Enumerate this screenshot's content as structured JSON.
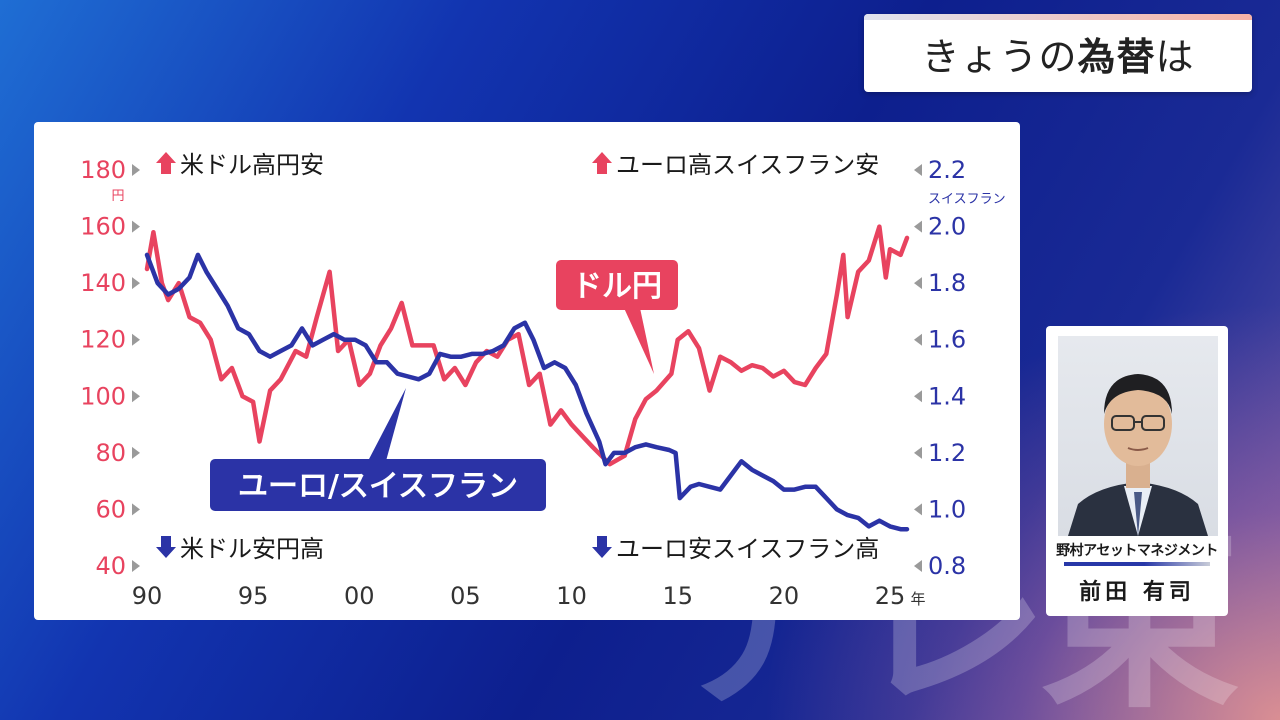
{
  "title": {
    "prefix": "きょうの",
    "emphasis": "為替",
    "suffix": "は"
  },
  "watermark": "テレ東",
  "guest": {
    "organization": "野村アセットマネジメント",
    "name": "前田 有司"
  },
  "colors": {
    "usd_jpy": "#e8435f",
    "eur_chf": "#2b33a6"
  },
  "chart_data": {
    "type": "line",
    "x_tick_labels": [
      "90",
      "95",
      "00",
      "05",
      "10",
      "15",
      "20",
      "25"
    ],
    "x_unit": "年",
    "xlim": [
      1990,
      2025.8
    ],
    "left_axis": {
      "unit": "円",
      "ticks": [
        "180",
        "160",
        "140",
        "120",
        "100",
        "80",
        "60",
        "40"
      ],
      "ylim": [
        40,
        180
      ],
      "top_note": "米ドル高円安",
      "bottom_note": "米ドル安円高"
    },
    "right_axis": {
      "unit": "スイスフラン",
      "ticks": [
        "2.2",
        "2.0",
        "1.8",
        "1.6",
        "1.4",
        "1.2",
        "1.0",
        "0.8"
      ],
      "ylim": [
        0.8,
        2.2
      ],
      "top_note": "ユーロ高スイスフラン安",
      "bottom_note": "ユーロ安スイスフラン高"
    },
    "series": [
      {
        "name": "ドル円",
        "axis": "left",
        "points": [
          [
            1990.0,
            145
          ],
          [
            1990.3,
            158
          ],
          [
            1990.7,
            140
          ],
          [
            1991.0,
            134
          ],
          [
            1991.5,
            140
          ],
          [
            1992.0,
            128
          ],
          [
            1992.5,
            126
          ],
          [
            1993.0,
            120
          ],
          [
            1993.5,
            106
          ],
          [
            1994.0,
            110
          ],
          [
            1994.5,
            100
          ],
          [
            1995.0,
            98
          ],
          [
            1995.3,
            84
          ],
          [
            1995.8,
            102
          ],
          [
            1996.3,
            106
          ],
          [
            1997.0,
            116
          ],
          [
            1997.5,
            114
          ],
          [
            1998.0,
            128
          ],
          [
            1998.6,
            144
          ],
          [
            1999.0,
            116
          ],
          [
            1999.5,
            120
          ],
          [
            2000.0,
            104
          ],
          [
            2000.5,
            108
          ],
          [
            2001.0,
            118
          ],
          [
            2001.5,
            124
          ],
          [
            2002.0,
            133
          ],
          [
            2002.5,
            118
          ],
          [
            2003.0,
            118
          ],
          [
            2003.5,
            118
          ],
          [
            2004.0,
            106
          ],
          [
            2004.5,
            110
          ],
          [
            2005.0,
            104
          ],
          [
            2005.5,
            112
          ],
          [
            2006.0,
            116
          ],
          [
            2006.5,
            114
          ],
          [
            2007.0,
            120
          ],
          [
            2007.5,
            122
          ],
          [
            2008.0,
            104
          ],
          [
            2008.5,
            108
          ],
          [
            2009.0,
            90
          ],
          [
            2009.5,
            95
          ],
          [
            2010.0,
            90
          ],
          [
            2010.5,
            86
          ],
          [
            2011.0,
            82
          ],
          [
            2011.8,
            76
          ],
          [
            2012.5,
            79
          ],
          [
            2013.0,
            92
          ],
          [
            2013.5,
            99
          ],
          [
            2014.0,
            102
          ],
          [
            2014.7,
            108
          ],
          [
            2015.0,
            120
          ],
          [
            2015.5,
            123
          ],
          [
            2016.0,
            117
          ],
          [
            2016.5,
            102
          ],
          [
            2017.0,
            114
          ],
          [
            2017.5,
            112
          ],
          [
            2018.0,
            109
          ],
          [
            2018.5,
            111
          ],
          [
            2019.0,
            110
          ],
          [
            2019.5,
            107
          ],
          [
            2020.0,
            109
          ],
          [
            2020.5,
            105
          ],
          [
            2021.0,
            104
          ],
          [
            2021.5,
            110
          ],
          [
            2022.0,
            115
          ],
          [
            2022.5,
            136
          ],
          [
            2022.8,
            150
          ],
          [
            2023.0,
            128
          ],
          [
            2023.5,
            144
          ],
          [
            2024.0,
            148
          ],
          [
            2024.5,
            160
          ],
          [
            2024.8,
            142
          ],
          [
            2025.0,
            152
          ],
          [
            2025.5,
            150
          ],
          [
            2025.8,
            156
          ]
        ]
      },
      {
        "name": "ユーロ/スイスフラン",
        "axis": "right",
        "points": [
          [
            1990.0,
            1.9
          ],
          [
            1990.5,
            1.8
          ],
          [
            1991.0,
            1.76
          ],
          [
            1991.5,
            1.78
          ],
          [
            1992.0,
            1.82
          ],
          [
            1992.4,
            1.9
          ],
          [
            1992.8,
            1.84
          ],
          [
            1993.3,
            1.78
          ],
          [
            1993.8,
            1.72
          ],
          [
            1994.3,
            1.64
          ],
          [
            1994.8,
            1.62
          ],
          [
            1995.3,
            1.56
          ],
          [
            1995.8,
            1.54
          ],
          [
            1996.3,
            1.56
          ],
          [
            1996.8,
            1.58
          ],
          [
            1997.3,
            1.64
          ],
          [
            1997.8,
            1.58
          ],
          [
            1998.3,
            1.6
          ],
          [
            1998.8,
            1.62
          ],
          [
            1999.3,
            1.6
          ],
          [
            1999.8,
            1.6
          ],
          [
            2000.3,
            1.58
          ],
          [
            2000.8,
            1.52
          ],
          [
            2001.3,
            1.52
          ],
          [
            2001.8,
            1.48
          ],
          [
            2002.3,
            1.47
          ],
          [
            2002.8,
            1.46
          ],
          [
            2003.3,
            1.48
          ],
          [
            2003.8,
            1.55
          ],
          [
            2004.3,
            1.54
          ],
          [
            2004.8,
            1.54
          ],
          [
            2005.3,
            1.55
          ],
          [
            2005.8,
            1.55
          ],
          [
            2006.3,
            1.56
          ],
          [
            2006.8,
            1.58
          ],
          [
            2007.3,
            1.64
          ],
          [
            2007.8,
            1.66
          ],
          [
            2008.2,
            1.6
          ],
          [
            2008.7,
            1.5
          ],
          [
            2009.2,
            1.52
          ],
          [
            2009.7,
            1.5
          ],
          [
            2010.2,
            1.44
          ],
          [
            2010.7,
            1.34
          ],
          [
            2011.3,
            1.24
          ],
          [
            2011.6,
            1.16
          ],
          [
            2012.0,
            1.2
          ],
          [
            2012.5,
            1.2
          ],
          [
            2013.0,
            1.22
          ],
          [
            2013.5,
            1.23
          ],
          [
            2014.0,
            1.22
          ],
          [
            2014.6,
            1.21
          ],
          [
            2014.9,
            1.2
          ],
          [
            2015.1,
            1.04
          ],
          [
            2015.6,
            1.08
          ],
          [
            2016.0,
            1.09
          ],
          [
            2016.5,
            1.08
          ],
          [
            2017.0,
            1.07
          ],
          [
            2017.5,
            1.12
          ],
          [
            2018.0,
            1.17
          ],
          [
            2018.5,
            1.14
          ],
          [
            2019.0,
            1.12
          ],
          [
            2019.5,
            1.1
          ],
          [
            2020.0,
            1.07
          ],
          [
            2020.5,
            1.07
          ],
          [
            2021.0,
            1.08
          ],
          [
            2021.5,
            1.08
          ],
          [
            2022.0,
            1.04
          ],
          [
            2022.5,
            1.0
          ],
          [
            2023.0,
            0.98
          ],
          [
            2023.5,
            0.97
          ],
          [
            2024.0,
            0.94
          ],
          [
            2024.5,
            0.96
          ],
          [
            2025.0,
            0.94
          ],
          [
            2025.5,
            0.93
          ],
          [
            2025.8,
            0.93
          ]
        ]
      }
    ],
    "callouts": {
      "usd_jpy": "ドル円",
      "eur_chf": "ユーロ/スイスフラン"
    }
  }
}
